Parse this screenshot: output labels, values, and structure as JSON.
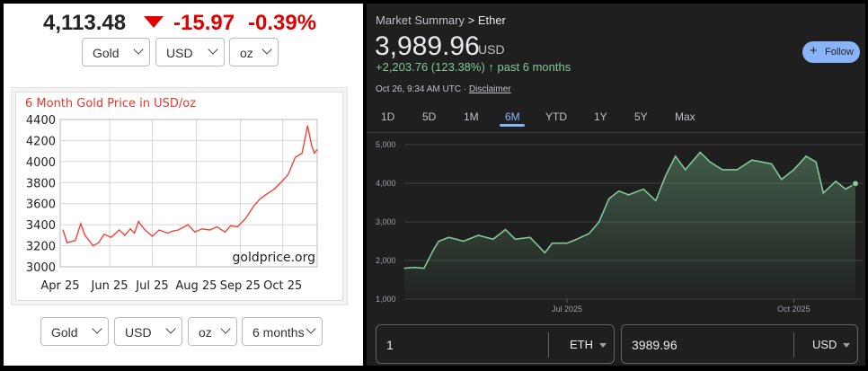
{
  "gold": {
    "price": "4,113.48",
    "change": "-15.97",
    "change_pct": "-0.39%",
    "top_selects": [
      "Gold",
      "USD",
      "oz"
    ],
    "bottom_selects": [
      "Gold",
      "USD",
      "oz",
      "6 months"
    ],
    "watermark": "goldprice.org",
    "colors": {
      "down": "#e00000",
      "line": "#f0443a"
    }
  },
  "ether": {
    "breadcrumb_root": "Market Summary",
    "breadcrumb_sep": ">",
    "breadcrumb_leaf": "Ether",
    "price": "3,989.96",
    "currency": "USD",
    "gain_value": "+2,203.76 (123.38%)",
    "gain_arrow": "↑",
    "gain_period": "past 6 months",
    "timestamp": "Oct 26, 9:34 AM UTC",
    "dot_sep": "·",
    "disclaimer": "Disclaimer",
    "follow_label": "Follow",
    "follow_plus": "+",
    "tabs": [
      "1D",
      "5D",
      "1M",
      "6M",
      "YTD",
      "1Y",
      "5Y",
      "Max"
    ],
    "active_tab": "6M",
    "converter": {
      "from_value": "1",
      "from_currency": "ETH",
      "to_value": "3989.96",
      "to_currency": "USD"
    },
    "colors": {
      "line": "#81c995",
      "accent": "#8ab4f8"
    }
  },
  "chart_data": [
    {
      "type": "line",
      "title": "6 Month Gold Price in USD/oz",
      "xlabel": "",
      "ylabel": "",
      "x_ticks": [
        "Apr 25",
        "Jun 25",
        "Jul 25",
        "Aug 25",
        "Sep 25",
        "Oct 25"
      ],
      "y_ticks": [
        3000,
        3200,
        3400,
        3600,
        3800,
        4000,
        4200,
        4400
      ],
      "ylim": [
        3000,
        4400
      ],
      "grid": true,
      "series": [
        {
          "x": [
            "Apr 22",
            "Apr 25",
            "May 1",
            "May 5",
            "May 8",
            "May 14",
            "May 18",
            "May 22",
            "May 27",
            "Jun 2",
            "Jun 6",
            "Jun 10",
            "Jun 13",
            "Jun 16",
            "Jun 20",
            "Jun 26",
            "Jul 1",
            "Jul 7",
            "Jul 11",
            "Jul 15",
            "Jul 22",
            "Jul 27",
            "Aug 1",
            "Aug 7",
            "Aug 12",
            "Aug 18",
            "Aug 22",
            "Aug 27",
            "Sep 2",
            "Sep 8",
            "Sep 12",
            "Sep 16",
            "Sep 23",
            "Sep 29",
            "Oct 3",
            "Oct 8",
            "Oct 13",
            "Oct 17",
            "Oct 20",
            "Oct 22",
            "Oct 24"
          ],
          "values": [
            3350,
            3230,
            3250,
            3410,
            3300,
            3200,
            3230,
            3310,
            3280,
            3350,
            3300,
            3360,
            3320,
            3430,
            3360,
            3290,
            3350,
            3320,
            3340,
            3350,
            3400,
            3330,
            3360,
            3350,
            3380,
            3330,
            3390,
            3380,
            3460,
            3580,
            3640,
            3680,
            3740,
            3820,
            3880,
            4040,
            4080,
            4340,
            4150,
            4080,
            4113
          ]
        }
      ]
    },
    {
      "type": "area",
      "title": "",
      "xlabel": "",
      "ylabel": "",
      "x_ticks": [
        "Jul 2025",
        "Oct 2025"
      ],
      "y_ticks": [
        1000,
        2000,
        3000,
        4000,
        5000
      ],
      "ylim": [
        1000,
        5000
      ],
      "grid": true,
      "series": [
        {
          "x": [
            "Apr 26",
            "Apr 30",
            "May 4",
            "May 8",
            "May 10",
            "May 14",
            "May 20",
            "May 26",
            "Jun 1",
            "Jun 6",
            "Jun 10",
            "Jun 16",
            "Jun 22",
            "Jun 25",
            "Jul 1",
            "Jul 5",
            "Jul 10",
            "Jul 14",
            "Jul 18",
            "Jul 22",
            "Jul 26",
            "Aug 1",
            "Aug 6",
            "Aug 10",
            "Aug 14",
            "Aug 18",
            "Aug 24",
            "Aug 28",
            "Sep 2",
            "Sep 8",
            "Sep 14",
            "Sep 18",
            "Sep 22",
            "Sep 26",
            "Oct 1",
            "Oct 6",
            "Oct 10",
            "Oct 13",
            "Oct 18",
            "Oct 22",
            "Oct 26"
          ],
          "values": [
            1800,
            1820,
            1800,
            2300,
            2500,
            2600,
            2500,
            2650,
            2550,
            2800,
            2550,
            2600,
            2200,
            2450,
            2450,
            2550,
            2700,
            3000,
            3600,
            3800,
            3700,
            3850,
            3550,
            4200,
            4700,
            4350,
            4800,
            4550,
            4350,
            4350,
            4600,
            4550,
            4500,
            4100,
            4350,
            4700,
            4550,
            3750,
            4050,
            3850,
            3990
          ]
        }
      ]
    }
  ]
}
